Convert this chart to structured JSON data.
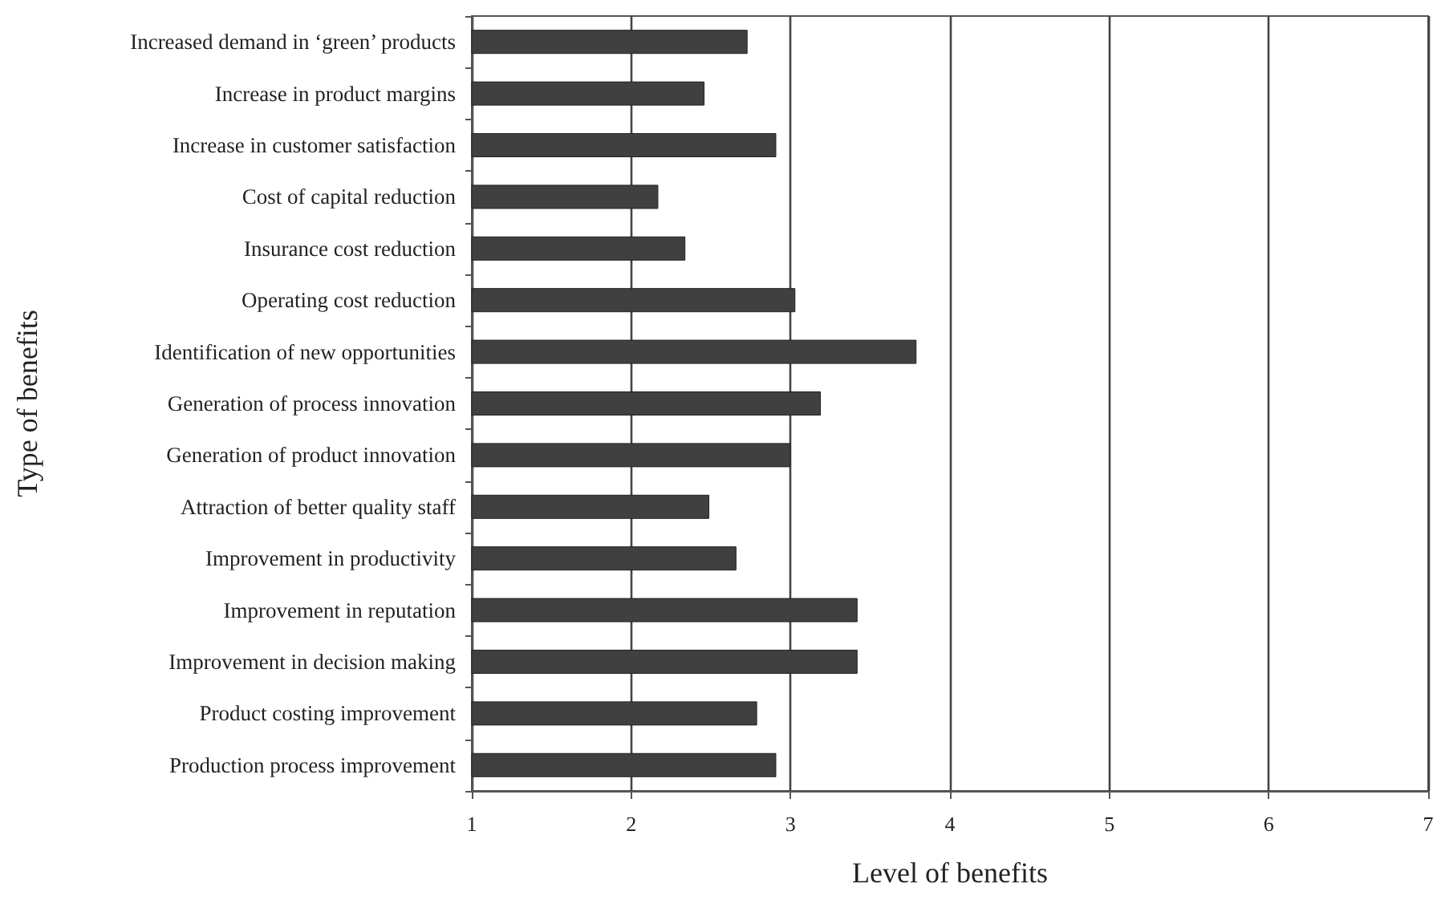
{
  "chart_data": {
    "type": "bar",
    "orientation": "horizontal",
    "xlabel": "Level of benefits",
    "ylabel": "Type of benefits",
    "categories": [
      "Increased demand in ‘green’ products",
      "Increase in product margins",
      "Increase in customer satisfaction",
      "Cost of capital reduction",
      "Insurance cost reduction",
      "Operating cost reduction",
      "Identification of new opportunities",
      "Generation of process innovation",
      "Generation of product innovation",
      "Attraction of better quality staff",
      "Improvement in productivity",
      "Improvement in reputation",
      "Improvement in decision making",
      "Product costing improvement",
      "Production process improvement"
    ],
    "values": [
      2.73,
      2.46,
      2.91,
      2.17,
      2.34,
      3.03,
      3.79,
      3.19,
      3.0,
      2.49,
      2.66,
      3.42,
      3.42,
      2.79,
      2.91
    ],
    "color": "#404040",
    "xlim": [
      1,
      7
    ],
    "xticks": [
      1,
      2,
      3,
      4,
      5,
      6,
      7
    ],
    "grid": "x"
  }
}
